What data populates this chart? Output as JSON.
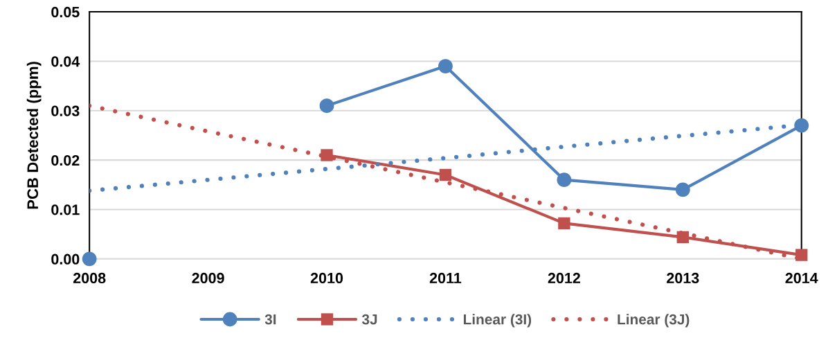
{
  "chart_data": {
    "type": "line",
    "ylabel": "PCB Detected (ppm)",
    "x": [
      2008,
      2009,
      2010,
      2011,
      2012,
      2013,
      2014
    ],
    "xlim": [
      2008,
      2014
    ],
    "xticks": [
      2008,
      2009,
      2010,
      2011,
      2012,
      2013,
      2014
    ],
    "ylim": [
      0,
      0.05
    ],
    "yticks": [
      {
        "value": 0,
        "label": "0.00"
      },
      0.01,
      0.02,
      0.03,
      0.04,
      0.05
    ],
    "grid": "y",
    "legend": "bottom",
    "series": [
      {
        "name": "3I",
        "color": "#4f81bd",
        "marker": "circle",
        "line_style": "solid",
        "values": [
          0.0,
          null,
          0.031,
          0.039,
          0.016,
          0.014,
          0.027
        ]
      },
      {
        "name": "3J",
        "color": "#c0504d",
        "marker": "square",
        "line_style": "solid",
        "values": [
          null,
          null,
          0.021,
          0.017,
          0.0072,
          0.0044,
          0.0008
        ]
      },
      {
        "name": "Linear (3I)",
        "color": "#4f81bd",
        "marker": "none",
        "line_style": "dotted",
        "values": [
          0.0138,
          0.016,
          0.0182,
          0.0204,
          0.0227,
          0.0249,
          0.0271
        ]
      },
      {
        "name": "Linear (3J)",
        "color": "#c0504d",
        "marker": "none",
        "line_style": "dotted",
        "values": [
          0.031,
          0.0258,
          0.0207,
          0.0155,
          0.0103,
          0.0052,
          0.0
        ]
      }
    ]
  }
}
